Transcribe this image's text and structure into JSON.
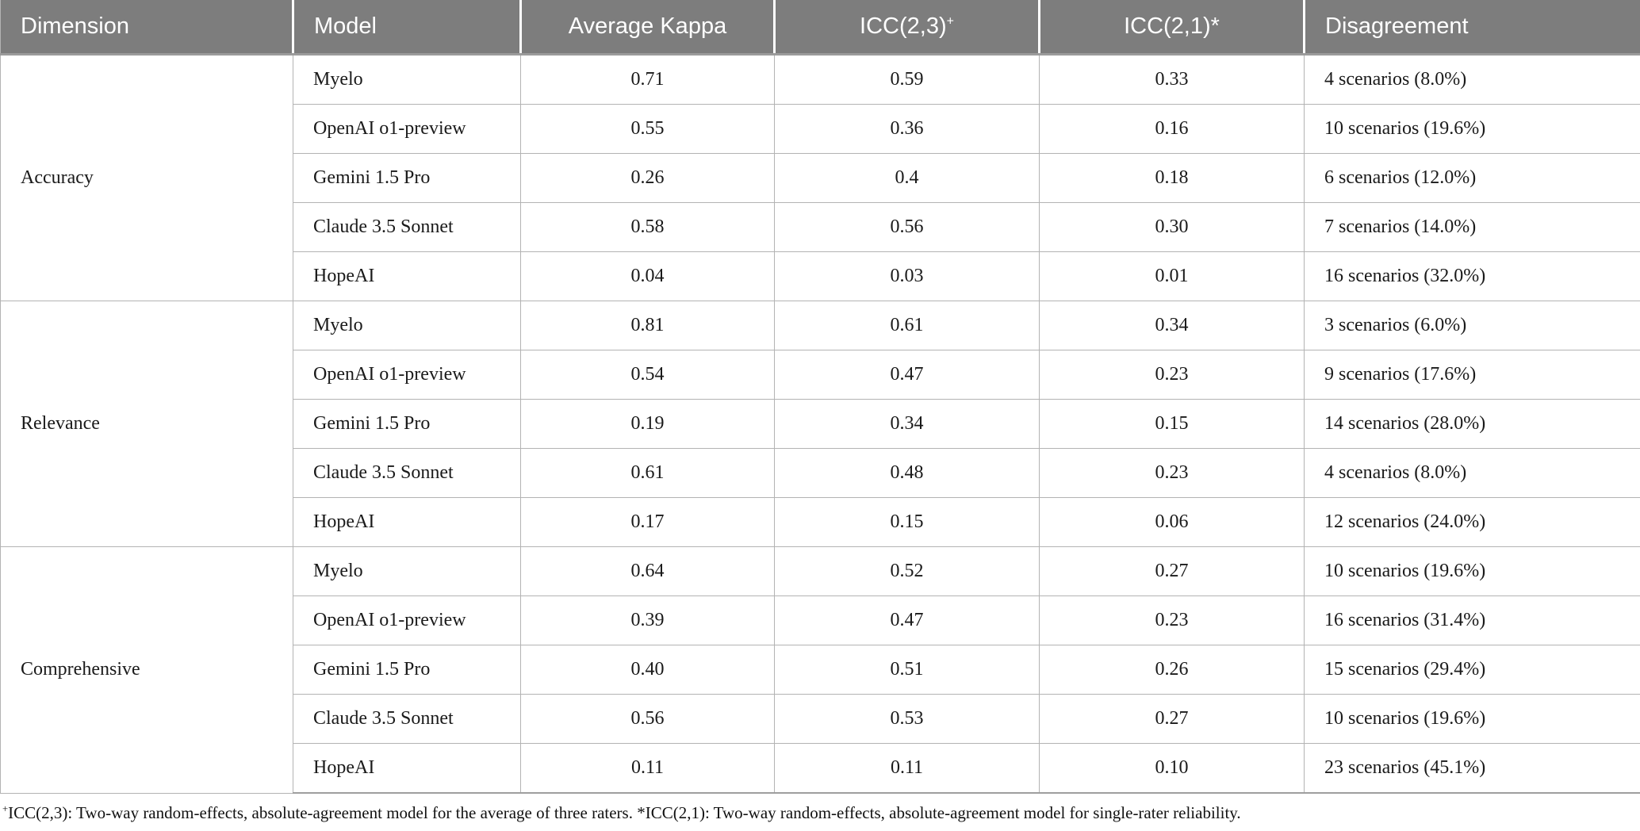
{
  "table": {
    "columns": {
      "dimension": "Dimension",
      "model": "Model",
      "kappa": "Average Kappa",
      "icc23_base": "ICC(2,3)",
      "icc23_sup": "+",
      "icc21": "ICC(2,1)*",
      "disagreement": "Disagreement"
    },
    "colors": {
      "header_bg": "#7d7d7d",
      "header_text": "#ffffff",
      "border": "#b3b3b3",
      "body_text": "#1a1a1a"
    },
    "groups": [
      {
        "dimension": "Accuracy",
        "rows": [
          {
            "model": "Myelo",
            "kappa": "0.71",
            "icc23": "0.59",
            "icc21": "0.33",
            "disagreement": "4 scenarios (8.0%)"
          },
          {
            "model": "OpenAI o1-preview",
            "kappa": "0.55",
            "icc23": "0.36",
            "icc21": "0.16",
            "disagreement": "10 scenarios (19.6%)"
          },
          {
            "model": "Gemini 1.5 Pro",
            "kappa": "0.26",
            "icc23": "0.4",
            "icc21": "0.18",
            "disagreement": "6 scenarios (12.0%)"
          },
          {
            "model": "Claude 3.5 Sonnet",
            "kappa": "0.58",
            "icc23": "0.56",
            "icc21": "0.30",
            "disagreement": "7 scenarios (14.0%)"
          },
          {
            "model": "HopeAI",
            "kappa": "0.04",
            "icc23": "0.03",
            "icc21": "0.01",
            "disagreement": "16 scenarios (32.0%)"
          }
        ]
      },
      {
        "dimension": "Relevance",
        "rows": [
          {
            "model": "Myelo",
            "kappa": "0.81",
            "icc23": "0.61",
            "icc21": "0.34",
            "disagreement": "3 scenarios (6.0%)"
          },
          {
            "model": "OpenAI o1-preview",
            "kappa": "0.54",
            "icc23": "0.47",
            "icc21": "0.23",
            "disagreement": "9 scenarios (17.6%)"
          },
          {
            "model": "Gemini 1.5 Pro",
            "kappa": "0.19",
            "icc23": "0.34",
            "icc21": "0.15",
            "disagreement": "14 scenarios (28.0%)"
          },
          {
            "model": "Claude 3.5 Sonnet",
            "kappa": "0.61",
            "icc23": "0.48",
            "icc21": "0.23",
            "disagreement": "4 scenarios (8.0%)"
          },
          {
            "model": "HopeAI",
            "kappa": "0.17",
            "icc23": "0.15",
            "icc21": "0.06",
            "disagreement": "12 scenarios (24.0%)"
          }
        ]
      },
      {
        "dimension": "Comprehensive",
        "rows": [
          {
            "model": "Myelo",
            "kappa": "0.64",
            "icc23": "0.52",
            "icc21": "0.27",
            "disagreement": "10 scenarios (19.6%)"
          },
          {
            "model": "OpenAI o1-preview",
            "kappa": "0.39",
            "icc23": "0.47",
            "icc21": "0.23",
            "disagreement": "16 scenarios (31.4%)"
          },
          {
            "model": "Gemini 1.5 Pro",
            "kappa": "0.40",
            "icc23": "0.51",
            "icc21": "0.26",
            "disagreement": "15 scenarios (29.4%)"
          },
          {
            "model": "Claude 3.5 Sonnet",
            "kappa": "0.56",
            "icc23": "0.53",
            "icc21": "0.27",
            "disagreement": "10 scenarios (19.6%)"
          },
          {
            "model": "HopeAI",
            "kappa": "0.11",
            "icc23": "0.11",
            "icc21": "0.10",
            "disagreement": "23 scenarios (45.1%)"
          }
        ]
      }
    ]
  },
  "footnote": {
    "sup": "+",
    "text": "ICC(2,3): Two-way random-effects, absolute-agreement model for the average of three raters. *ICC(2,1): Two-way random-effects, absolute-agreement model for single-rater reliability."
  }
}
